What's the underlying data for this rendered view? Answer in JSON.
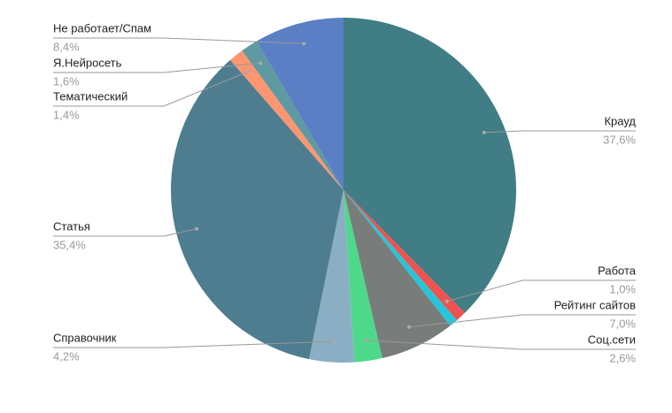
{
  "chart_data": {
    "type": "pie",
    "categories": [
      "Крауд",
      "Работа",
      null,
      "Рейтинг сайтов",
      "Соц.сети",
      "Справочник",
      "Статья",
      "Тематический",
      "Я.Нейросеть",
      "Не работает/Спам"
    ],
    "values": [
      37.6,
      1.0,
      0.8,
      7.0,
      2.6,
      4.2,
      35.4,
      1.4,
      1.6,
      8.4
    ],
    "value_labels": [
      "37,6%",
      "1,0%",
      null,
      "7,0%",
      "2,6%",
      "4,2%",
      "35,4%",
      "1,4%",
      "1,6%",
      "8,4%"
    ],
    "colors": [
      "#417d84",
      "#ef5350",
      "#26c6da",
      "#787d7b",
      "#4ed98a",
      "#8aafc4",
      "#4e7d8f",
      "#fd9670",
      "#5f9aa2",
      "#5a7fc4"
    ]
  }
}
